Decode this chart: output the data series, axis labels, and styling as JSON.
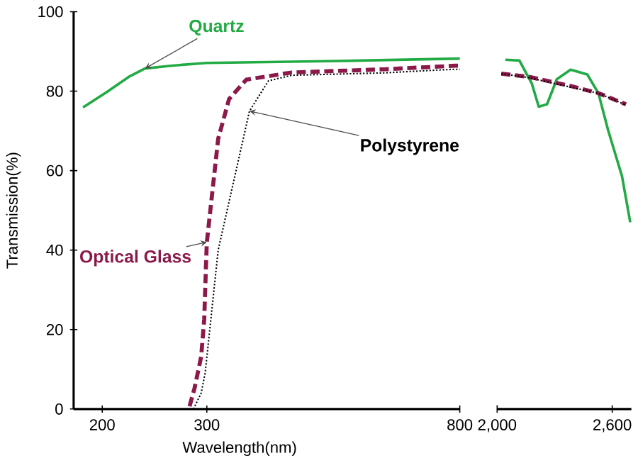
{
  "chart_data": [
    {
      "type": "line",
      "xlabel": "Wavelength(nm)",
      "ylabel": "Transmission(%)",
      "log": "x",
      "xlim": [
        179,
        800
      ],
      "xticks": [
        200,
        300,
        800
      ],
      "ylim": [
        0,
        100
      ],
      "yticks": [
        0,
        20,
        40,
        60,
        80,
        100
      ],
      "grid": false,
      "series": [
        {
          "name": "Quartz",
          "color": "#22aa44",
          "line_style": "solid",
          "x": [
            185.6,
            203.6,
            221.6,
            236,
            261,
            300,
            500,
            800
          ],
          "values": [
            75.9,
            79.8,
            83.6,
            85.7,
            86.4,
            87.1,
            87.6,
            88.2
          ]
        },
        {
          "name": "Optical Glass",
          "color": "#8b1a4a",
          "line_style": "dashed",
          "x": [
            280.6,
            286,
            293.5,
            297,
            299.3,
            300,
            313.5,
            327,
            349.6,
            417,
            597,
            787,
            800
          ],
          "values": [
            0.7,
            5.2,
            13.2,
            22.6,
            38,
            42,
            68,
            78,
            82.9,
            84.7,
            85.5,
            86.4,
            86.4
          ]
        },
        {
          "name": "Polystyrene",
          "color": "#000000",
          "line_style": "dotted",
          "x": [
            284.9,
            293.5,
            298,
            300,
            313.5,
            336,
            354,
            381,
            417,
            597,
            777,
            800
          ],
          "values": [
            0,
            4,
            9,
            13,
            40,
            60,
            75,
            82.6,
            84,
            84.6,
            85.5,
            85.5
          ]
        }
      ]
    },
    {
      "type": "line",
      "xlim": [
        2000,
        2700
      ],
      "xticks": [
        {
          "value": 2000,
          "label": "2,000"
        },
        {
          "value": 2600,
          "label": "2,600"
        }
      ],
      "ylim": [
        0,
        100
      ],
      "tick_labels": "x",
      "grid": false,
      "series": [
        {
          "color": "#22aa44",
          "line_style": "solid",
          "x": [
            2043,
            2116,
            2181,
            2217,
            2260,
            2311,
            2383,
            2470,
            2528,
            2578,
            2651,
            2694
          ],
          "values": [
            87.9,
            87.7,
            81.9,
            76.1,
            76.7,
            83,
            85.4,
            84.2,
            79.5,
            70.3,
            58.6,
            47
          ]
        },
        {
          "color": "#8b1a4a",
          "line_style": "dashed",
          "x": [
            2021.7,
            2166,
            2383,
            2528,
            2672
          ],
          "values": [
            84.4,
            83.6,
            81.3,
            79.5,
            76.7
          ]
        },
        {
          "color": "#000000",
          "line_style": "dotted",
          "x": [
            2021.7,
            2166,
            2383,
            2528,
            2672
          ],
          "values": [
            84.4,
            83.4,
            81,
            79.5,
            76.5
          ]
        }
      ]
    }
  ]
}
